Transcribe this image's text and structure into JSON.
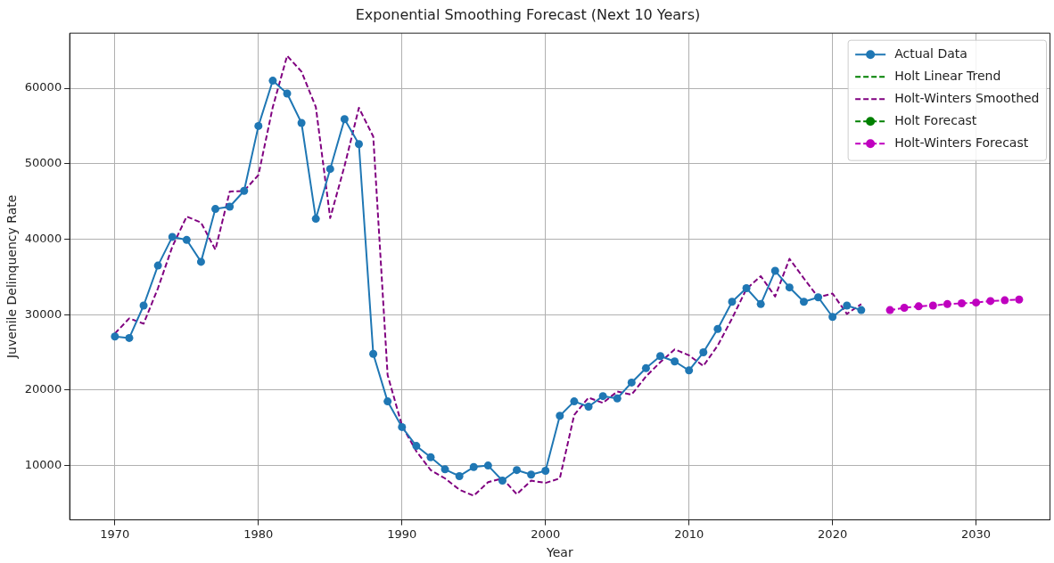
{
  "chart_data": {
    "type": "line",
    "title": "Exponential Smoothing Forecast (Next 10 Years)",
    "xlabel": "Year",
    "ylabel": "Juvenile Delinquency Rate",
    "xlim": [
      1966.85,
      2035.15
    ],
    "xticks": [
      1970,
      1980,
      1990,
      2000,
      2010,
      2020,
      2030
    ],
    "ylim": [
      2800,
      67300
    ],
    "yticks": [
      10000,
      20000,
      30000,
      40000,
      50000,
      60000
    ],
    "grid": true,
    "legend": "top right",
    "series": [
      {
        "name": "Actual Data",
        "color": "#1f77b4",
        "marker": "circle",
        "line_style": "solid",
        "x": [
          1970,
          1971,
          1972,
          1973,
          1974,
          1975,
          1976,
          1977,
          1978,
          1979,
          1980,
          1981,
          1982,
          1983,
          1984,
          1985,
          1986,
          1987,
          1988,
          1989,
          1990,
          1991,
          1992,
          1993,
          1994,
          1995,
          1996,
          1997,
          1998,
          1999,
          2000,
          2001,
          2002,
          2003,
          2004,
          2005,
          2006,
          2007,
          2008,
          2009,
          2010,
          2011,
          2012,
          2013,
          2014,
          2015,
          2016,
          2017,
          2018,
          2019,
          2020,
          2021,
          2022
        ],
        "values": [
          27100,
          26900,
          31200,
          36500,
          40300,
          39900,
          37000,
          44000,
          44300,
          46400,
          55000,
          61000,
          59300,
          55400,
          42700,
          49300,
          55900,
          52600,
          24800,
          18500,
          15100,
          12600,
          11100,
          9500,
          8600,
          9800,
          10000,
          8000,
          9400,
          8800,
          9300,
          16600,
          18500,
          17800,
          19200,
          18900,
          21000,
          22900,
          24500,
          23800,
          22600,
          25000,
          28100,
          31700,
          33500,
          31400,
          35800,
          33600,
          31700,
          32300,
          29700,
          31200,
          30600
        ]
      },
      {
        "name": "Holt Linear Trend",
        "color": "#008000",
        "marker": "none",
        "line_style": "dashed"
      },
      {
        "name": "Holt-Winters Smoothed",
        "color": "#800080",
        "marker": "none",
        "line_style": "dashed",
        "x": [
          1970,
          1971,
          1972,
          1973,
          1974,
          1975,
          1976,
          1977,
          1978,
          1979,
          1980,
          1981,
          1982,
          1983,
          1984,
          1985,
          1986,
          1987,
          1988,
          1989,
          1990,
          1991,
          1992,
          1993,
          1994,
          1995,
          1996,
          1997,
          1998,
          1999,
          2000,
          2001,
          2002,
          2003,
          2004,
          2005,
          2006,
          2007,
          2008,
          2009,
          2010,
          2011,
          2012,
          2013,
          2014,
          2015,
          2016,
          2017,
          2018,
          2019,
          2020,
          2021,
          2022
        ],
        "values": [
          27500,
          29500,
          28800,
          33500,
          39000,
          43000,
          42200,
          38600,
          46300,
          46400,
          48500,
          57500,
          64300,
          62200,
          57500,
          42800,
          49700,
          57400,
          53600,
          22000,
          15300,
          11900,
          9400,
          8300,
          6800,
          6000,
          7800,
          8300,
          6200,
          8000,
          7700,
          8300,
          16700,
          19000,
          18300,
          19800,
          19400,
          21800,
          23700,
          25400,
          24600,
          23200,
          25900,
          29500,
          33400,
          35100,
          32400,
          37400,
          34800,
          32300,
          32800,
          30100,
          31400
        ]
      },
      {
        "name": "Holt Forecast",
        "color": "#008000",
        "marker": "circle",
        "line_style": "dashed"
      },
      {
        "name": "Holt-Winters Forecast",
        "color": "#bf00bf",
        "marker": "circle",
        "line_style": "dashed",
        "x": [
          2024,
          2025,
          2026,
          2027,
          2028,
          2029,
          2030,
          2031,
          2032,
          2033
        ],
        "values": [
          30600,
          30900,
          31100,
          31200,
          31400,
          31500,
          31600,
          31800,
          31900,
          32000
        ]
      }
    ]
  }
}
